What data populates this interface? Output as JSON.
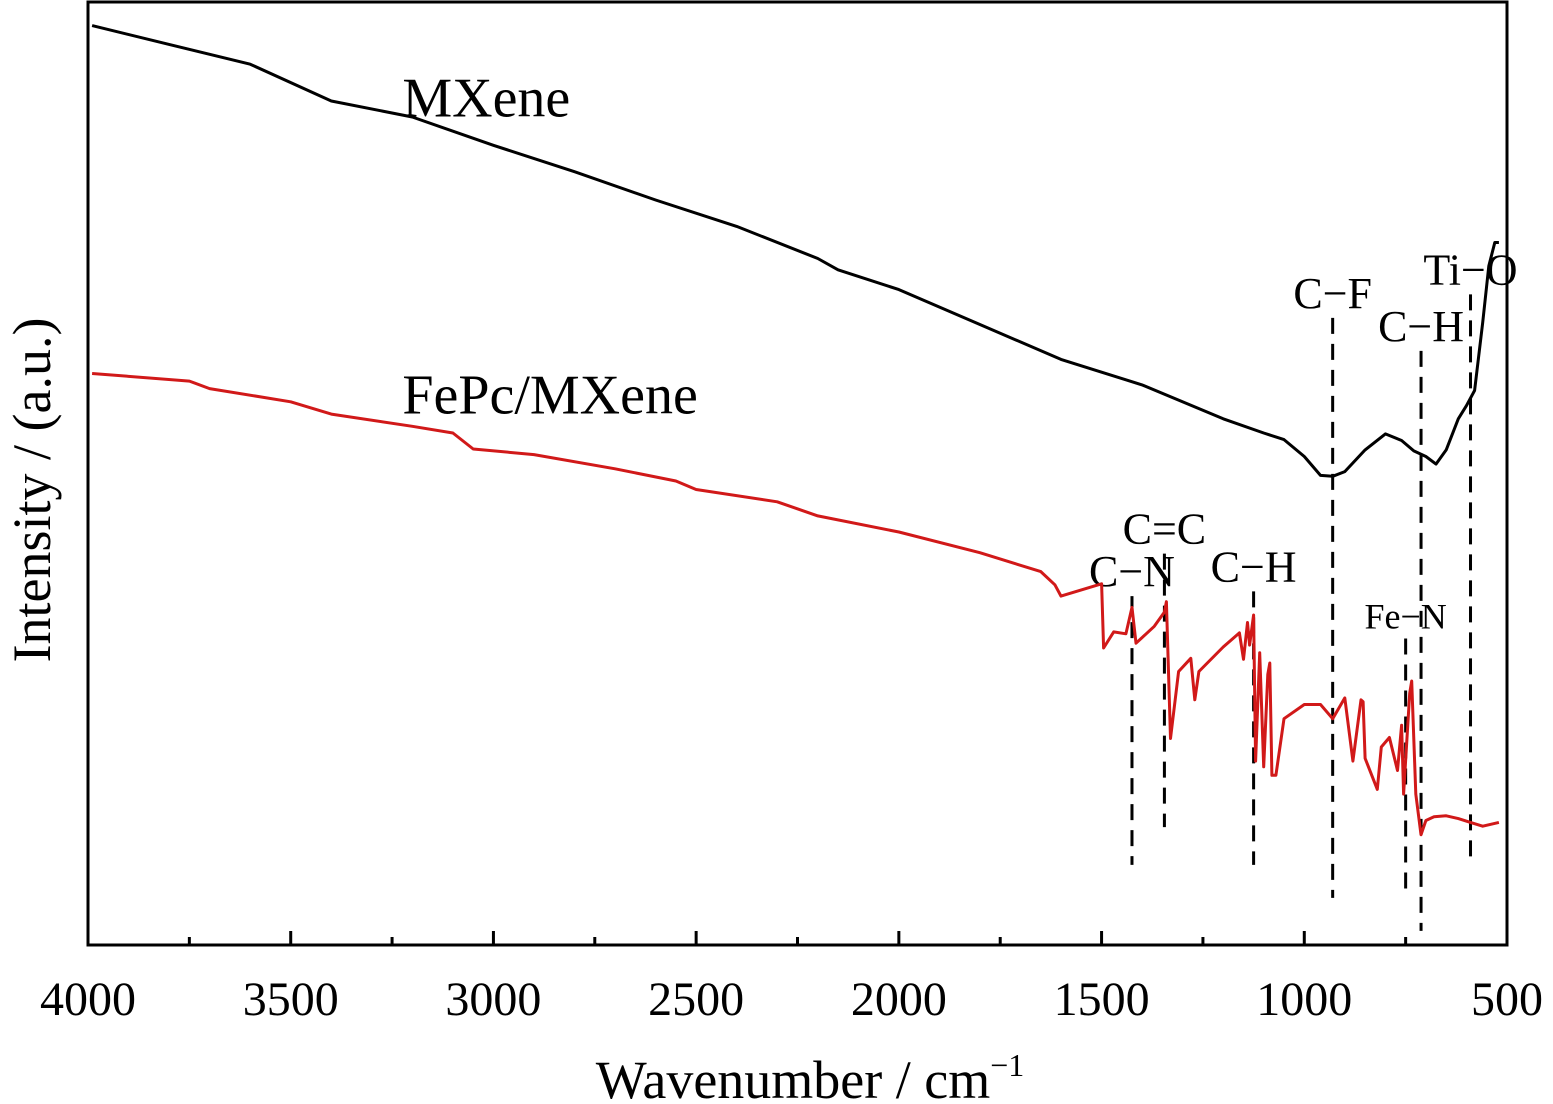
{
  "chart_data": {
    "type": "line",
    "xlabel": "Wavenumber / cm",
    "xlabel_sup": "−1",
    "ylabel": "Intensity / (a.u.)",
    "xlim": [
      4000,
      500
    ],
    "x_reversed": true,
    "ylim": [
      0,
      100
    ],
    "y_ticks_shown": false,
    "grid": false,
    "x_ticks": [
      4000,
      3500,
      3000,
      2500,
      2000,
      1500,
      1000,
      500
    ],
    "series": [
      {
        "name": "MXene",
        "color": "#000000",
        "points": [
          [
            3990,
            97.5
          ],
          [
            3800,
            95.5
          ],
          [
            3600,
            93.4
          ],
          [
            3400,
            89.5
          ],
          [
            3200,
            87.8
          ],
          [
            3000,
            84.8
          ],
          [
            2800,
            82.0
          ],
          [
            2600,
            79.0
          ],
          [
            2400,
            76.2
          ],
          [
            2200,
            72.8
          ],
          [
            2150,
            71.6
          ],
          [
            2000,
            69.5
          ],
          [
            1800,
            65.8
          ],
          [
            1600,
            62.1
          ],
          [
            1400,
            59.4
          ],
          [
            1200,
            55.8
          ],
          [
            1100,
            54.3
          ],
          [
            1050,
            53.6
          ],
          [
            1000,
            51.8
          ],
          [
            960,
            49.8
          ],
          [
            930,
            49.7
          ],
          [
            900,
            50.2
          ],
          [
            850,
            52.5
          ],
          [
            800,
            54.2
          ],
          [
            760,
            53.5
          ],
          [
            730,
            52.4
          ],
          [
            700,
            51.8
          ],
          [
            675,
            51.0
          ],
          [
            650,
            52.5
          ],
          [
            620,
            55.8
          ],
          [
            600,
            57.2
          ],
          [
            580,
            58.8
          ],
          [
            560,
            66.0
          ],
          [
            545,
            72.0
          ],
          [
            530,
            74.5
          ],
          [
            520,
            74.5
          ]
        ]
      },
      {
        "name": "FePc/MXene",
        "color": "#d11919",
        "points": [
          [
            3990,
            60.6
          ],
          [
            3750,
            59.8
          ],
          [
            3700,
            59.0
          ],
          [
            3500,
            57.6
          ],
          [
            3400,
            56.3
          ],
          [
            3200,
            55.0
          ],
          [
            3100,
            54.3
          ],
          [
            3050,
            52.6
          ],
          [
            2900,
            52.0
          ],
          [
            2700,
            50.5
          ],
          [
            2550,
            49.2
          ],
          [
            2500,
            48.3
          ],
          [
            2300,
            47.0
          ],
          [
            2200,
            45.5
          ],
          [
            2000,
            43.8
          ],
          [
            1800,
            41.6
          ],
          [
            1650,
            39.6
          ],
          [
            1615,
            38.2
          ],
          [
            1600,
            37.0
          ],
          [
            1500,
            38.3
          ],
          [
            1495,
            31.5
          ],
          [
            1470,
            33.2
          ],
          [
            1440,
            33.0
          ],
          [
            1425,
            35.8
          ],
          [
            1415,
            32.0
          ],
          [
            1370,
            33.8
          ],
          [
            1345,
            35.3
          ],
          [
            1340,
            36.4
          ],
          [
            1330,
            21.9
          ],
          [
            1310,
            29.0
          ],
          [
            1280,
            30.4
          ],
          [
            1270,
            26.0
          ],
          [
            1260,
            29.0
          ],
          [
            1200,
            31.6
          ],
          [
            1160,
            33.1
          ],
          [
            1150,
            30.3
          ],
          [
            1140,
            34.2
          ],
          [
            1135,
            31.8
          ],
          [
            1125,
            35.0
          ],
          [
            1120,
            19.5
          ],
          [
            1110,
            31.0
          ],
          [
            1100,
            18.9
          ],
          [
            1090,
            28.7
          ],
          [
            1085,
            29.9
          ],
          [
            1080,
            18.0
          ],
          [
            1070,
            18.0
          ],
          [
            1050,
            24.0
          ],
          [
            1000,
            25.5
          ],
          [
            960,
            25.5
          ],
          [
            930,
            24.0
          ],
          [
            900,
            26.2
          ],
          [
            880,
            19.5
          ],
          [
            860,
            26.0
          ],
          [
            855,
            25.8
          ],
          [
            850,
            19.8
          ],
          [
            820,
            16.5
          ],
          [
            810,
            21.0
          ],
          [
            790,
            22.0
          ],
          [
            770,
            18.5
          ],
          [
            760,
            23.3
          ],
          [
            755,
            16.0
          ],
          [
            740,
            26.7
          ],
          [
            735,
            28.0
          ],
          [
            725,
            16.0
          ],
          [
            712,
            11.7
          ],
          [
            700,
            13.2
          ],
          [
            680,
            13.6
          ],
          [
            650,
            13.7
          ],
          [
            620,
            13.4
          ],
          [
            590,
            13.0
          ],
          [
            560,
            12.6
          ],
          [
            520,
            13.0
          ]
        ]
      }
    ],
    "series_labels": [
      {
        "text": "MXene",
        "x": 3200,
        "y": 90.0
      },
      {
        "text": "FePc/MXene",
        "x": 3200,
        "y": 58.5
      }
    ],
    "annotations": [
      {
        "label": "C−N",
        "x": 1425,
        "y_top": 37.0,
        "y_bottom": 8.5
      },
      {
        "label": "C=C",
        "x": 1345,
        "y_top": 41.5,
        "y_bottom": 12.5
      },
      {
        "label": "C−H",
        "x": 1125,
        "y_top": 37.5,
        "y_bottom": 8.5
      },
      {
        "label": "C−F",
        "x": 930,
        "y_top": 66.5,
        "y_bottom": 5.0
      },
      {
        "label": "Fe−N",
        "x": 750,
        "y_top": 32.5,
        "y_bottom": 5.0,
        "small": true
      },
      {
        "label": "C−H",
        "x": 712,
        "y_top": 63.0,
        "y_bottom": 1.5
      },
      {
        "label": "Ti−O",
        "x": 590,
        "y_top": 69.0,
        "y_bottom": 8.5
      }
    ]
  }
}
